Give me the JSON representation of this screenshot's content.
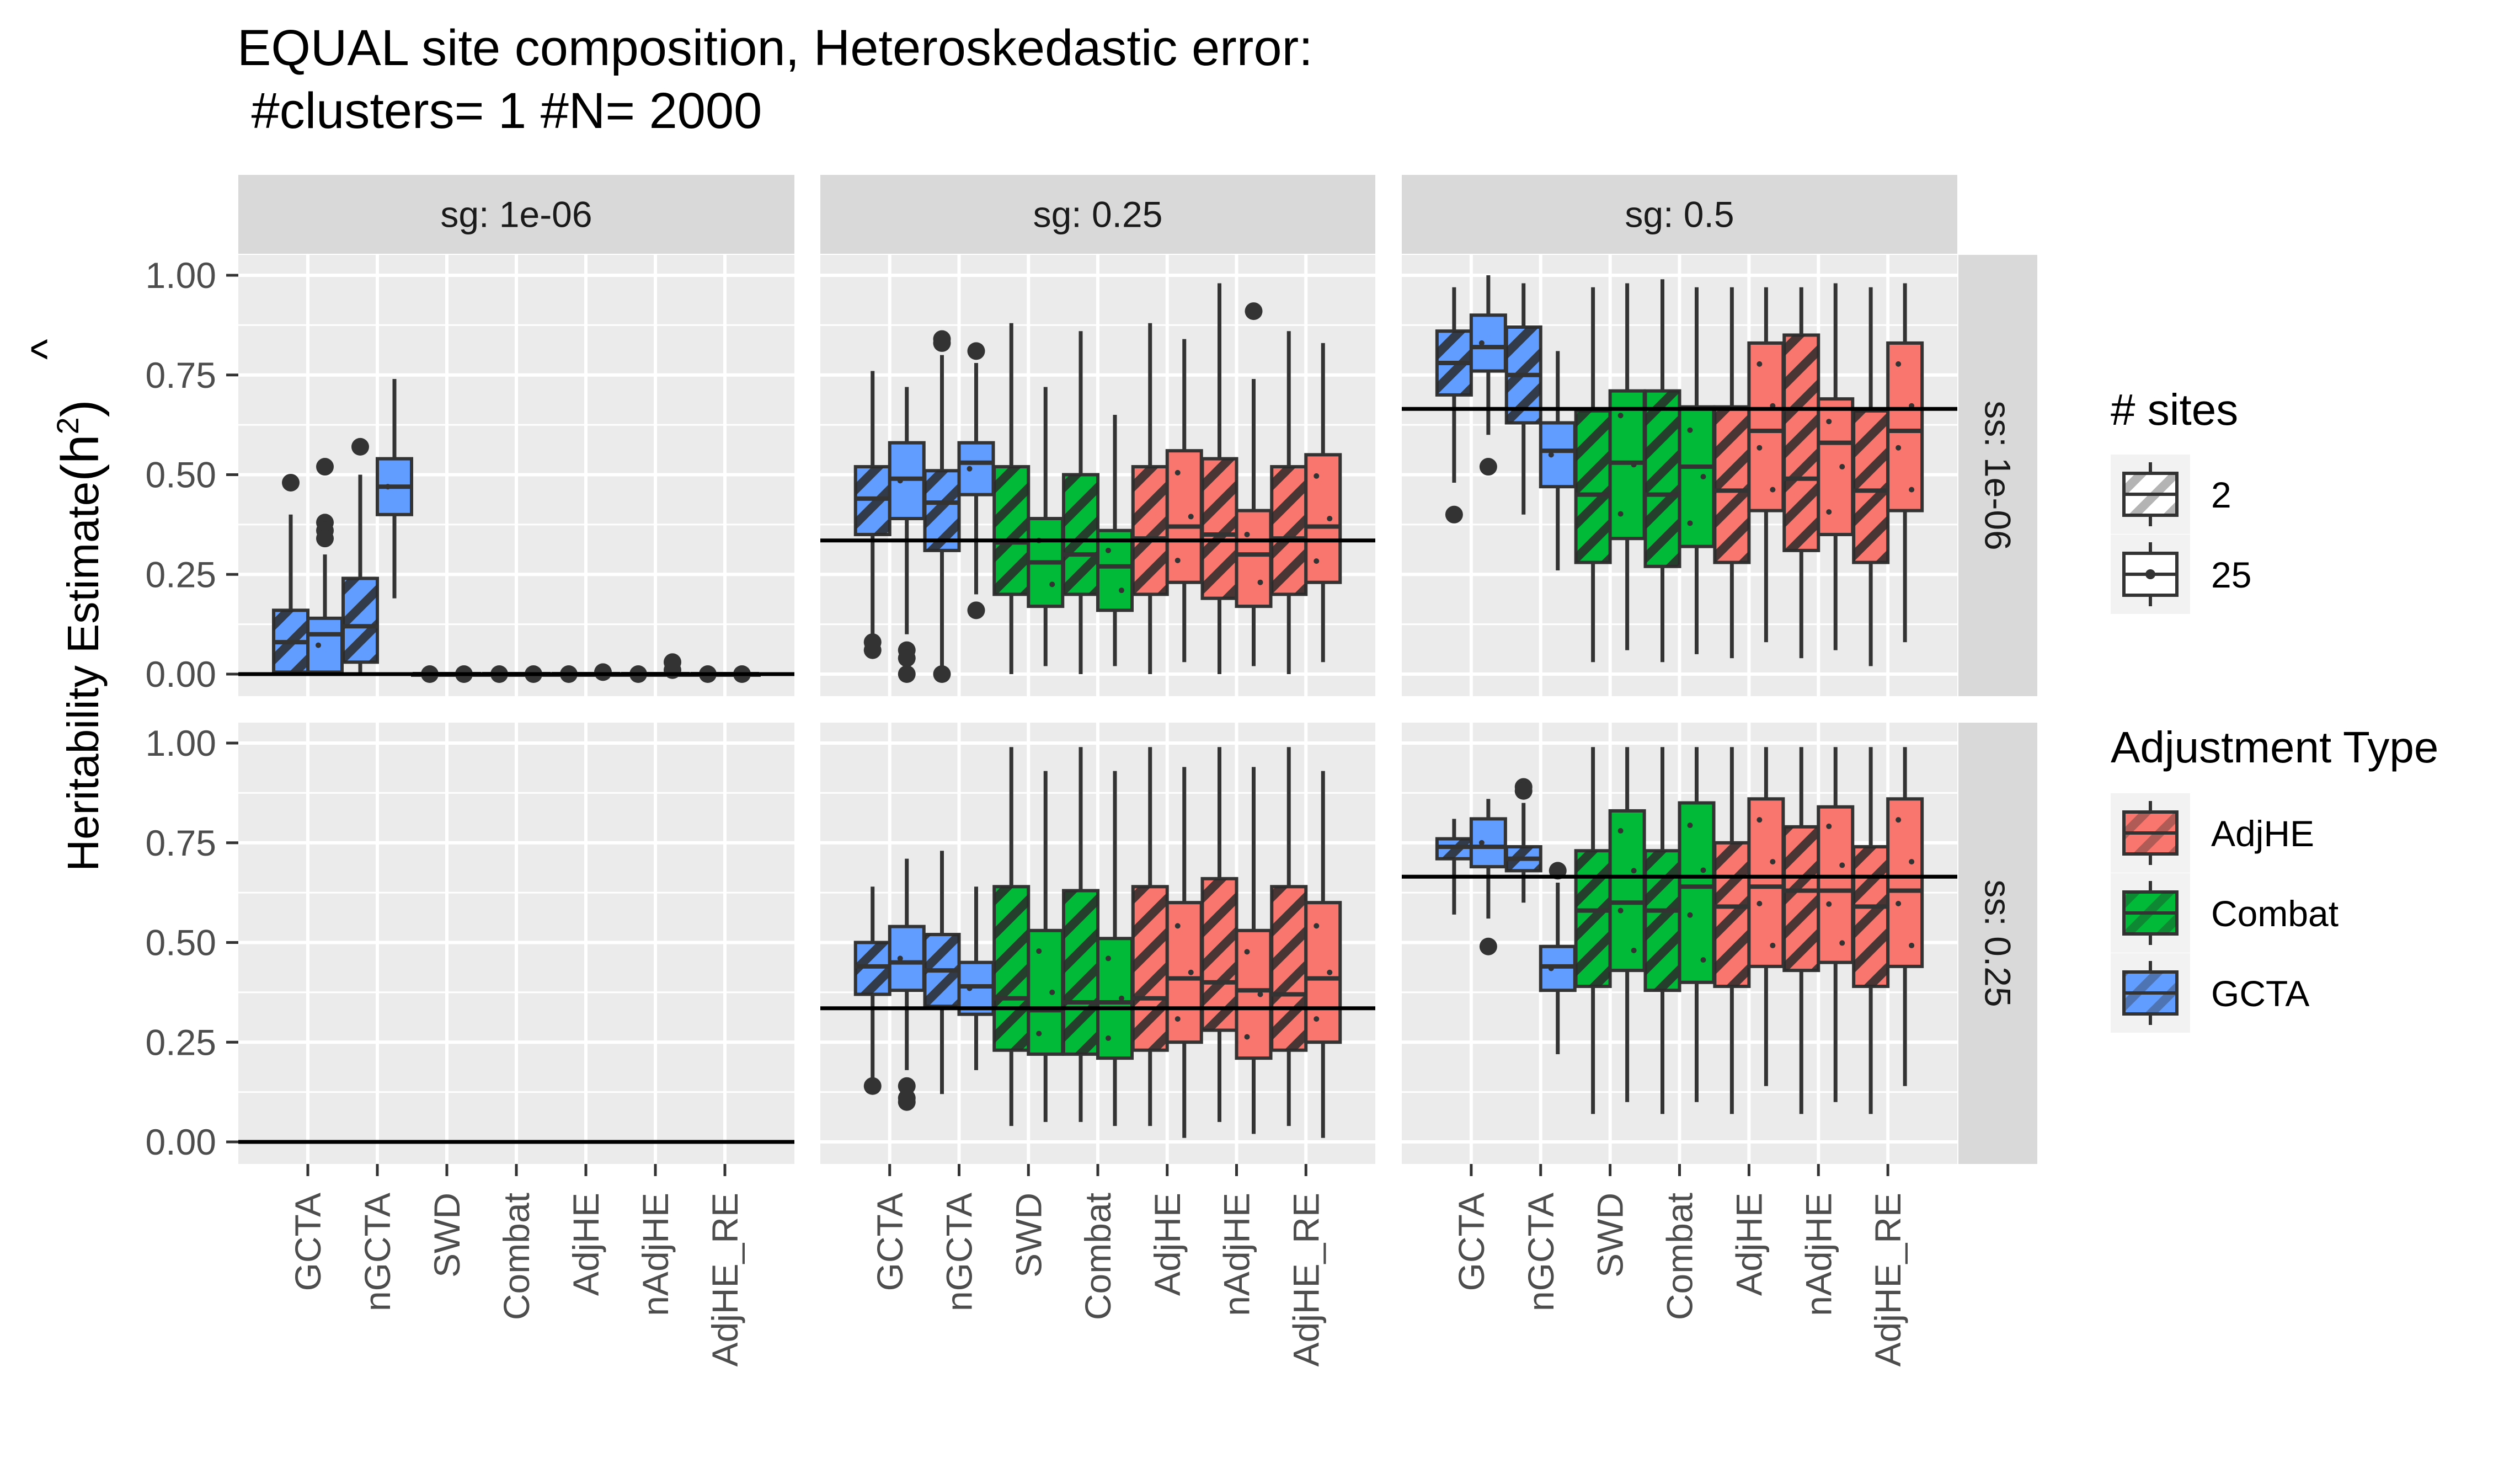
{
  "chart_data": {
    "type": "boxplot",
    "title": "EQUAL site composition, Heteroskedastic error:",
    "subtitle": " #clusters= 1 #N= 2000",
    "ylabel_text": "Heritability Estimate",
    "ylabel_symbol": "(h",
    "ylabel_hat": "^",
    "ylabel_sup": "2",
    "ylabel_close": ")",
    "ylim": [
      0,
      1
    ],
    "y_ticks": [
      0,
      0.25,
      0.5,
      0.75,
      1
    ],
    "y_tick_labels": [
      "0.00",
      "0.25",
      "0.50",
      "0.75",
      "1.00"
    ],
    "categories": [
      "GCTA",
      "nGCTA",
      "SWD",
      "Combat",
      "AdjHE",
      "nAdjHE",
      "AdjHE_RE"
    ],
    "category_type": [
      "GCTA",
      "GCTA",
      "Combat",
      "Combat",
      "AdjHE",
      "AdjHE",
      "AdjHE"
    ],
    "column_strips": [
      "sg: 1e-06",
      "sg: 0.25",
      "sg: 0.5"
    ],
    "row_strips": [
      "ss: 1e-06",
      "ss: 0.25"
    ],
    "grid": true,
    "legend_position": "right",
    "legends": {
      "sites": {
        "title": "# sites",
        "items": [
          "2",
          "25"
        ]
      },
      "adjustment": {
        "title": "Adjustment Type",
        "items": [
          {
            "label": "AdjHE",
            "color": "#F8766D"
          },
          {
            "label": "Combat",
            "color": "#00BA38"
          },
          {
            "label": "GCTA",
            "color": "#619CFF"
          }
        ]
      }
    },
    "colors": {
      "AdjHE": "#F8766D",
      "Combat": "#00BA38",
      "GCTA": "#619CFF",
      "panel_bg": "#EBEBEB",
      "strip_bg": "#D9D9D9"
    },
    "panels": [
      {
        "row": 0,
        "col": 0,
        "hline": 0,
        "boxes": [
          {
            "cat": "GCTA",
            "sites": "2",
            "min": 0,
            "q1": 0.005,
            "med": 0.08,
            "q3": 0.16,
            "max": 0.4,
            "out": [
              0.48
            ]
          },
          {
            "cat": "GCTA",
            "sites": "25",
            "min": 0,
            "q1": 0.005,
            "med": 0.1,
            "q3": 0.14,
            "max": 0.3,
            "out": [
              0.52,
              0.38,
              0.36,
              0.34
            ]
          },
          {
            "cat": "nGCTA",
            "sites": "2",
            "min": 0,
            "q1": 0.03,
            "med": 0.12,
            "q3": 0.24,
            "max": 0.5,
            "out": [
              0.57
            ]
          },
          {
            "cat": "nGCTA",
            "sites": "25",
            "min": 0.19,
            "q1": 0.4,
            "med": 0.47,
            "q3": 0.54,
            "max": 0.74,
            "out": []
          },
          {
            "cat": "SWD",
            "sites": "2",
            "min": 0,
            "q1": 0,
            "med": 0,
            "q3": 0,
            "max": 0,
            "out": [
              0
            ]
          },
          {
            "cat": "SWD",
            "sites": "25",
            "min": 0,
            "q1": 0,
            "med": 0,
            "q3": 0,
            "max": 0,
            "out": [
              0
            ]
          },
          {
            "cat": "Combat",
            "sites": "2",
            "min": 0,
            "q1": 0,
            "med": 0,
            "q3": 0,
            "max": 0,
            "out": [
              0
            ]
          },
          {
            "cat": "Combat",
            "sites": "25",
            "min": 0,
            "q1": 0,
            "med": 0,
            "q3": 0,
            "max": 0,
            "out": [
              0
            ]
          },
          {
            "cat": "AdjHE",
            "sites": "2",
            "min": 0,
            "q1": 0,
            "med": 0,
            "q3": 0,
            "max": 0,
            "out": [
              0
            ]
          },
          {
            "cat": "AdjHE",
            "sites": "25",
            "min": 0,
            "q1": 0,
            "med": 0,
            "q3": 0,
            "max": 0,
            "out": [
              0.005
            ]
          },
          {
            "cat": "nAdjHE",
            "sites": "2",
            "min": 0,
            "q1": 0,
            "med": 0,
            "q3": 0,
            "max": 0,
            "out": [
              0
            ]
          },
          {
            "cat": "nAdjHE",
            "sites": "25",
            "min": 0,
            "q1": 0,
            "med": 0,
            "q3": 0,
            "max": 0,
            "out": [
              0.03,
              0.01
            ]
          },
          {
            "cat": "AdjHE_RE",
            "sites": "2",
            "min": 0,
            "q1": 0,
            "med": 0,
            "q3": 0,
            "max": 0,
            "out": [
              0
            ]
          },
          {
            "cat": "AdjHE_RE",
            "sites": "25",
            "min": 0,
            "q1": 0,
            "med": 0,
            "q3": 0,
            "max": 0,
            "out": [
              0
            ]
          }
        ]
      },
      {
        "row": 0,
        "col": 1,
        "hline": 0.335,
        "boxes": [
          {
            "cat": "GCTA",
            "sites": "2",
            "min": 0.1,
            "q1": 0.35,
            "med": 0.44,
            "q3": 0.52,
            "max": 0.76,
            "out": [
              0.08,
              0.06
            ]
          },
          {
            "cat": "GCTA",
            "sites": "25",
            "min": 0.1,
            "q1": 0.39,
            "med": 0.49,
            "q3": 0.58,
            "max": 0.72,
            "out": [
              0.06,
              0.04,
              0.0
            ]
          },
          {
            "cat": "nGCTA",
            "sites": "2",
            "min": 0.02,
            "q1": 0.31,
            "med": 0.43,
            "q3": 0.51,
            "max": 0.8,
            "out": [
              0.84,
              0.83,
              0.0
            ]
          },
          {
            "cat": "nGCTA",
            "sites": "25",
            "min": 0.2,
            "q1": 0.45,
            "med": 0.53,
            "q3": 0.58,
            "max": 0.78,
            "out": [
              0.81,
              0.16
            ]
          },
          {
            "cat": "SWD",
            "sites": "2",
            "min": 0.0,
            "q1": 0.2,
            "med": 0.33,
            "q3": 0.52,
            "max": 0.88,
            "out": []
          },
          {
            "cat": "SWD",
            "sites": "25",
            "min": 0.02,
            "q1": 0.17,
            "med": 0.28,
            "q3": 0.39,
            "max": 0.72,
            "out": []
          },
          {
            "cat": "Combat",
            "sites": "2",
            "min": 0.0,
            "q1": 0.2,
            "med": 0.3,
            "q3": 0.5,
            "max": 0.86,
            "out": []
          },
          {
            "cat": "Combat",
            "sites": "25",
            "min": 0.02,
            "q1": 0.16,
            "med": 0.27,
            "q3": 0.36,
            "max": 0.65,
            "out": []
          },
          {
            "cat": "AdjHE",
            "sites": "2",
            "min": 0.0,
            "q1": 0.2,
            "med": 0.34,
            "q3": 0.52,
            "max": 0.88,
            "out": []
          },
          {
            "cat": "AdjHE",
            "sites": "25",
            "min": 0.03,
            "q1": 0.23,
            "med": 0.37,
            "q3": 0.56,
            "max": 0.84,
            "out": []
          },
          {
            "cat": "nAdjHE",
            "sites": "2",
            "min": 0.0,
            "q1": 0.19,
            "med": 0.35,
            "q3": 0.54,
            "max": 0.98,
            "out": []
          },
          {
            "cat": "nAdjHE",
            "sites": "25",
            "min": 0.02,
            "q1": 0.17,
            "med": 0.3,
            "q3": 0.41,
            "max": 0.74,
            "out": [
              0.91
            ]
          },
          {
            "cat": "AdjHE_RE",
            "sites": "2",
            "min": 0.0,
            "q1": 0.2,
            "med": 0.34,
            "q3": 0.52,
            "max": 0.86,
            "out": []
          },
          {
            "cat": "AdjHE_RE",
            "sites": "25",
            "min": 0.03,
            "q1": 0.23,
            "med": 0.37,
            "q3": 0.55,
            "max": 0.83,
            "out": []
          }
        ]
      },
      {
        "row": 0,
        "col": 2,
        "hline": 0.665,
        "boxes": [
          {
            "cat": "GCTA",
            "sites": "2",
            "min": 0.48,
            "q1": 0.7,
            "med": 0.78,
            "q3": 0.86,
            "max": 0.97,
            "out": [
              0.4
            ]
          },
          {
            "cat": "GCTA",
            "sites": "25",
            "min": 0.6,
            "q1": 0.76,
            "med": 0.82,
            "q3": 0.9,
            "max": 1.0,
            "out": [
              0.52
            ]
          },
          {
            "cat": "nGCTA",
            "sites": "2",
            "min": 0.4,
            "q1": 0.63,
            "med": 0.75,
            "q3": 0.87,
            "max": 0.98,
            "out": []
          },
          {
            "cat": "nGCTA",
            "sites": "25",
            "min": 0.26,
            "q1": 0.47,
            "med": 0.56,
            "q3": 0.63,
            "max": 0.81,
            "out": []
          },
          {
            "cat": "SWD",
            "sites": "2",
            "min": 0.03,
            "q1": 0.28,
            "med": 0.45,
            "q3": 0.66,
            "max": 0.97,
            "out": []
          },
          {
            "cat": "SWD",
            "sites": "25",
            "min": 0.06,
            "q1": 0.34,
            "med": 0.53,
            "q3": 0.71,
            "max": 0.98,
            "out": []
          },
          {
            "cat": "Combat",
            "sites": "2",
            "min": 0.03,
            "q1": 0.27,
            "med": 0.45,
            "q3": 0.71,
            "max": 0.99,
            "out": []
          },
          {
            "cat": "Combat",
            "sites": "25",
            "min": 0.05,
            "q1": 0.32,
            "med": 0.52,
            "q3": 0.67,
            "max": 0.97,
            "out": []
          },
          {
            "cat": "AdjHE",
            "sites": "2",
            "min": 0.04,
            "q1": 0.28,
            "med": 0.46,
            "q3": 0.67,
            "max": 0.97,
            "out": []
          },
          {
            "cat": "AdjHE",
            "sites": "25",
            "min": 0.08,
            "q1": 0.41,
            "med": 0.61,
            "q3": 0.83,
            "max": 0.97,
            "out": []
          },
          {
            "cat": "nAdjHE",
            "sites": "2",
            "min": 0.04,
            "q1": 0.31,
            "med": 0.49,
            "q3": 0.85,
            "max": 0.97,
            "out": []
          },
          {
            "cat": "nAdjHE",
            "sites": "25",
            "min": 0.06,
            "q1": 0.35,
            "med": 0.58,
            "q3": 0.69,
            "max": 0.98,
            "out": []
          },
          {
            "cat": "AdjHE_RE",
            "sites": "2",
            "min": 0.02,
            "q1": 0.28,
            "med": 0.46,
            "q3": 0.66,
            "max": 0.97,
            "out": []
          },
          {
            "cat": "AdjHE_RE",
            "sites": "25",
            "min": 0.08,
            "q1": 0.41,
            "med": 0.61,
            "q3": 0.83,
            "max": 0.98,
            "out": []
          }
        ]
      },
      {
        "row": 1,
        "col": 0,
        "hline": 0,
        "boxes": []
      },
      {
        "row": 1,
        "col": 1,
        "hline": 0.335,
        "boxes": [
          {
            "cat": "GCTA",
            "sites": "2",
            "min": 0.16,
            "q1": 0.37,
            "med": 0.44,
            "q3": 0.5,
            "max": 0.64,
            "out": [
              0.14
            ]
          },
          {
            "cat": "GCTA",
            "sites": "25",
            "min": 0.18,
            "q1": 0.38,
            "med": 0.45,
            "q3": 0.54,
            "max": 0.71,
            "out": [
              0.14,
              0.11,
              0.1
            ]
          },
          {
            "cat": "nGCTA",
            "sites": "2",
            "min": 0.12,
            "q1": 0.34,
            "med": 0.43,
            "q3": 0.52,
            "max": 0.73,
            "out": []
          },
          {
            "cat": "nGCTA",
            "sites": "25",
            "min": 0.18,
            "q1": 0.32,
            "med": 0.39,
            "q3": 0.45,
            "max": 0.64,
            "out": []
          },
          {
            "cat": "SWD",
            "sites": "2",
            "min": 0.04,
            "q1": 0.23,
            "med": 0.36,
            "q3": 0.64,
            "max": 0.99,
            "out": []
          },
          {
            "cat": "SWD",
            "sites": "25",
            "min": 0.05,
            "q1": 0.22,
            "med": 0.33,
            "q3": 0.53,
            "max": 0.93,
            "out": []
          },
          {
            "cat": "Combat",
            "sites": "2",
            "min": 0.05,
            "q1": 0.22,
            "med": 0.35,
            "q3": 0.63,
            "max": 0.99,
            "out": []
          },
          {
            "cat": "Combat",
            "sites": "25",
            "min": 0.04,
            "q1": 0.21,
            "med": 0.35,
            "q3": 0.51,
            "max": 0.93,
            "out": []
          },
          {
            "cat": "AdjHE",
            "sites": "2",
            "min": 0.04,
            "q1": 0.23,
            "med": 0.36,
            "q3": 0.64,
            "max": 0.99,
            "out": []
          },
          {
            "cat": "AdjHE",
            "sites": "25",
            "min": 0.01,
            "q1": 0.25,
            "med": 0.41,
            "q3": 0.6,
            "max": 0.94,
            "out": []
          },
          {
            "cat": "nAdjHE",
            "sites": "2",
            "min": 0.05,
            "q1": 0.28,
            "med": 0.4,
            "q3": 0.66,
            "max": 0.99,
            "out": []
          },
          {
            "cat": "nAdjHE",
            "sites": "25",
            "min": 0.02,
            "q1": 0.21,
            "med": 0.38,
            "q3": 0.53,
            "max": 0.94,
            "out": []
          },
          {
            "cat": "AdjHE_RE",
            "sites": "2",
            "min": 0.04,
            "q1": 0.23,
            "med": 0.37,
            "q3": 0.64,
            "max": 0.99,
            "out": []
          },
          {
            "cat": "AdjHE_RE",
            "sites": "25",
            "min": 0.01,
            "q1": 0.25,
            "med": 0.41,
            "q3": 0.6,
            "max": 0.93,
            "out": []
          }
        ]
      },
      {
        "row": 1,
        "col": 2,
        "hline": 0.665,
        "boxes": [
          {
            "cat": "GCTA",
            "sites": "2",
            "min": 0.57,
            "q1": 0.71,
            "med": 0.74,
            "q3": 0.76,
            "max": 0.81,
            "out": []
          },
          {
            "cat": "GCTA",
            "sites": "25",
            "min": 0.56,
            "q1": 0.69,
            "med": 0.74,
            "q3": 0.81,
            "max": 0.86,
            "out": [
              0.49
            ]
          },
          {
            "cat": "nGCTA",
            "sites": "2",
            "min": 0.6,
            "q1": 0.68,
            "med": 0.71,
            "q3": 0.74,
            "max": 0.85,
            "out": [
              0.89,
              0.88
            ]
          },
          {
            "cat": "nGCTA",
            "sites": "25",
            "min": 0.22,
            "q1": 0.38,
            "med": 0.44,
            "q3": 0.49,
            "max": 0.65,
            "out": [
              0.68
            ]
          },
          {
            "cat": "SWD",
            "sites": "2",
            "min": 0.07,
            "q1": 0.39,
            "med": 0.58,
            "q3": 0.73,
            "max": 0.99,
            "out": []
          },
          {
            "cat": "SWD",
            "sites": "25",
            "min": 0.1,
            "q1": 0.43,
            "med": 0.6,
            "q3": 0.83,
            "max": 0.99,
            "out": []
          },
          {
            "cat": "Combat",
            "sites": "2",
            "min": 0.07,
            "q1": 0.38,
            "med": 0.58,
            "q3": 0.73,
            "max": 0.99,
            "out": []
          },
          {
            "cat": "Combat",
            "sites": "25",
            "min": 0.1,
            "q1": 0.4,
            "med": 0.64,
            "q3": 0.85,
            "max": 0.99,
            "out": []
          },
          {
            "cat": "AdjHE",
            "sites": "2",
            "min": 0.07,
            "q1": 0.39,
            "med": 0.59,
            "q3": 0.75,
            "max": 0.99,
            "out": []
          },
          {
            "cat": "AdjHE",
            "sites": "25",
            "min": 0.14,
            "q1": 0.44,
            "med": 0.64,
            "q3": 0.86,
            "max": 0.99,
            "out": []
          },
          {
            "cat": "nAdjHE",
            "sites": "2",
            "min": 0.07,
            "q1": 0.43,
            "med": 0.63,
            "q3": 0.79,
            "max": 0.99,
            "out": []
          },
          {
            "cat": "nAdjHE",
            "sites": "25",
            "min": 0.1,
            "q1": 0.45,
            "med": 0.63,
            "q3": 0.84,
            "max": 0.99,
            "out": []
          },
          {
            "cat": "AdjHE_RE",
            "sites": "2",
            "min": 0.07,
            "q1": 0.39,
            "med": 0.59,
            "q3": 0.74,
            "max": 0.99,
            "out": []
          },
          {
            "cat": "AdjHE_RE",
            "sites": "25",
            "min": 0.14,
            "q1": 0.44,
            "med": 0.63,
            "q3": 0.86,
            "max": 0.99,
            "out": []
          }
        ]
      }
    ]
  }
}
